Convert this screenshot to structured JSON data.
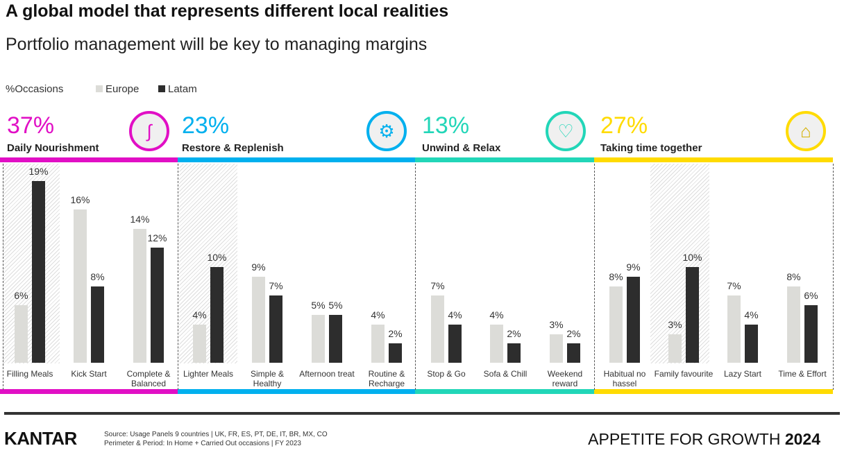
{
  "title": "A global model that represents different local realities",
  "subtitle": "Portfolio management will be key to managing margins",
  "legend": {
    "measure": "%Occasions",
    "europe": "Europe",
    "latam": "Latam"
  },
  "colors": {
    "europe": "#dcdcd8",
    "latam": "#2d2d2d",
    "daily": "#e10fc5",
    "restore": "#00b0ee",
    "unwind": "#22d6b8",
    "together": "#ffdb00"
  },
  "groups": [
    {
      "pct": "37%",
      "name": "Daily Nourishment",
      "icon": "stomach-icon"
    },
    {
      "pct": "23%",
      "name": "Restore & Replenish",
      "icon": "brain-head-icon"
    },
    {
      "pct": "13%",
      "name": "Unwind & Relax",
      "icon": "heart-icon"
    },
    {
      "pct": "27%",
      "name": "Taking time together",
      "icon": "chef-hat-icon"
    }
  ],
  "chart_data": {
    "type": "bar",
    "ylabel": "%Occasions",
    "categories": [
      "Filling Meals",
      "Kick Start",
      "Complete & Balanced",
      "Lighter Meals",
      "Simple & Healthy",
      "Afternoon treat",
      "Routine & Recharge",
      "Stop & Go",
      "Sofa & Chill",
      "Weekend reward",
      "Habitual no hassel",
      "Family favourite",
      "Lazy Start",
      "Time & Effort"
    ],
    "series": [
      {
        "name": "Europe",
        "values": [
          6,
          16,
          14,
          4,
          9,
          5,
          4,
          7,
          4,
          3,
          8,
          3,
          7,
          8
        ]
      },
      {
        "name": "Latam",
        "values": [
          19,
          8,
          12,
          10,
          7,
          5,
          2,
          4,
          2,
          2,
          9,
          10,
          4,
          6
        ]
      }
    ],
    "labels": {
      "Europe": [
        "6%",
        "16%",
        "14%",
        "4%",
        "9%",
        "5%",
        "4%",
        "7%",
        "4%",
        "3%",
        "8%",
        "3%",
        "7%",
        "8%"
      ],
      "Latam": [
        "19%",
        "8%",
        "12%",
        "10%",
        "7%",
        "5%",
        "2%",
        "4%",
        "2%",
        "2%",
        "9%",
        "10%",
        "4%",
        "6%"
      ]
    },
    "highlighted": [
      "Filling Meals",
      "Lighter Meals",
      "Family favourite"
    ]
  },
  "footer": {
    "logo": "KANTAR",
    "source": "Source: Usage Panels 9 countries | UK, FR, ES, PT, DE, IT, BR, MX, CO",
    "period": "Perimeter & Period: In Home + Carried Out occasions | FY 2023",
    "brand": "APPETITE FOR GROWTH ",
    "brand_year": "2024"
  }
}
